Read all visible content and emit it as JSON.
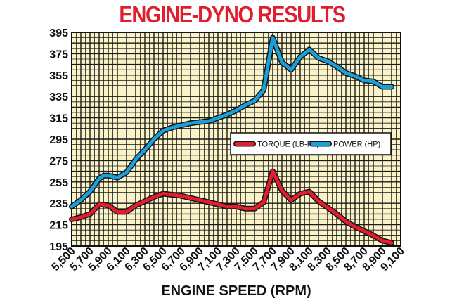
{
  "title": "ENGINE-DYNO RESULTS",
  "chart_data": {
    "type": "line",
    "title": "ENGINE-DYNO RESULTS",
    "xlabel": "ENGINE SPEED (RPM)",
    "ylabel": "",
    "x_ticks": [
      "5,500",
      "5,700",
      "5,900",
      "6,100",
      "6,300",
      "6,500",
      "6,700",
      "6,900",
      "7,100",
      "7,300",
      "7,500",
      "7,700",
      "7,900",
      "8,100",
      "8,300",
      "8,500",
      "8,700",
      "8,900",
      "9,100"
    ],
    "y_ticks": [
      "195",
      "215",
      "235",
      "255",
      "275",
      "295",
      "315",
      "335",
      "355",
      "375",
      "395"
    ],
    "xlim": [
      5500,
      9100
    ],
    "ylim": [
      195,
      395
    ],
    "grid": true,
    "legend_position": "center-right",
    "series": [
      {
        "name": "TORQUE (LB-FT)",
        "color": "#e01e2d",
        "x": [
          5500,
          5600,
          5700,
          5800,
          5900,
          6000,
          6100,
          6200,
          6300,
          6400,
          6500,
          6600,
          6700,
          6800,
          6900,
          7000,
          7100,
          7200,
          7300,
          7400,
          7500,
          7600,
          7700,
          7800,
          7900,
          8000,
          8100,
          8200,
          8300,
          8400,
          8500,
          8600,
          8700,
          8800,
          8900,
          9000
        ],
        "y": [
          220,
          222,
          225,
          234,
          233,
          227,
          227,
          233,
          237,
          241,
          244,
          243,
          242,
          240,
          238,
          236,
          234,
          232,
          232,
          230,
          230,
          236,
          265,
          247,
          238,
          244,
          246,
          237,
          231,
          225,
          218,
          213,
          209,
          205,
          200,
          198
        ]
      },
      {
        "name": "POWER (HP)",
        "color": "#1a9fd8",
        "x": [
          5500,
          5600,
          5700,
          5800,
          5850,
          5900,
          6000,
          6100,
          6200,
          6300,
          6400,
          6500,
          6600,
          6700,
          6800,
          6900,
          7000,
          7100,
          7200,
          7300,
          7400,
          7500,
          7600,
          7700,
          7800,
          7900,
          8000,
          8100,
          8200,
          8300,
          8400,
          8500,
          8600,
          8700,
          8800,
          8900,
          9000
        ],
        "y": [
          232,
          238,
          246,
          258,
          261,
          261,
          259,
          264,
          276,
          285,
          295,
          303,
          306,
          308,
          310,
          311,
          312,
          315,
          318,
          322,
          327,
          331,
          341,
          390,
          367,
          360,
          372,
          379,
          371,
          368,
          363,
          357,
          354,
          350,
          349,
          344,
          344
        ]
      }
    ]
  }
}
